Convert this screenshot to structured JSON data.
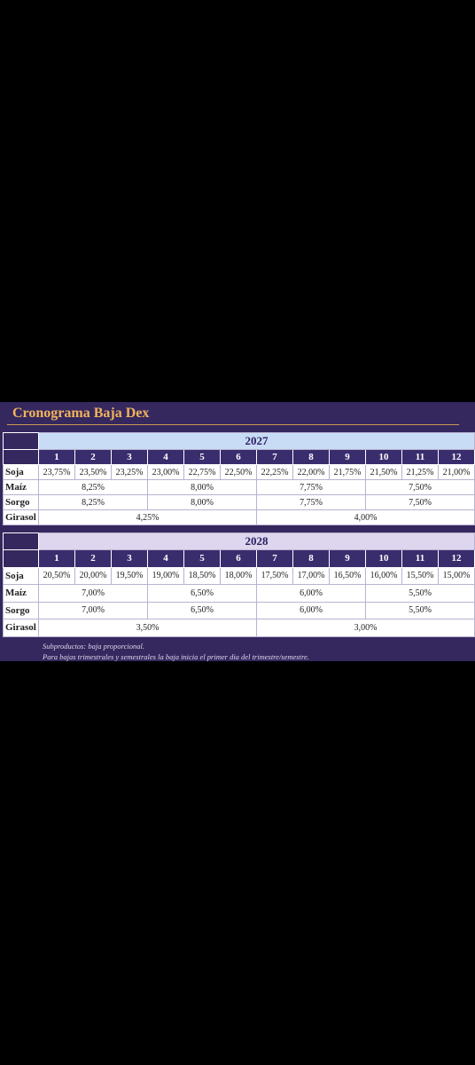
{
  "title": "Cronograma Baja Dex",
  "tables": [
    {
      "year": "2027",
      "months": [
        "1",
        "2",
        "3",
        "4",
        "5",
        "6",
        "7",
        "8",
        "9",
        "10",
        "11",
        "12"
      ],
      "rows": [
        {
          "label": "Soja",
          "cells": [
            "23,75%",
            "23,50%",
            "23,25%",
            "23,00%",
            "22,75%",
            "22,50%",
            "22,25%",
            "22,00%",
            "21,75%",
            "21,50%",
            "21,25%",
            "21,00%"
          ]
        },
        {
          "label": "Maíz",
          "cells": [
            "8,25%",
            "8,00%",
            "7,75%",
            "7,50%"
          ]
        },
        {
          "label": "Sorgo",
          "cells": [
            "8,25%",
            "8,00%",
            "7,75%",
            "7,50%"
          ]
        },
        {
          "label": "Girasol",
          "cells": [
            "4,25%",
            "4,00%"
          ]
        }
      ]
    },
    {
      "year": "2028",
      "months": [
        "1",
        "2",
        "3",
        "4",
        "5",
        "6",
        "7",
        "8",
        "9",
        "10",
        "11",
        "12"
      ],
      "rows": [
        {
          "label": "Soja",
          "cells": [
            "20,50%",
            "20,00%",
            "19,50%",
            "19,00%",
            "18,50%",
            "18,00%",
            "17,50%",
            "17,00%",
            "16,50%",
            "16,00%",
            "15,50%",
            "15,00%"
          ]
        },
        {
          "label": "Maíz",
          "cells": [
            "7,00%",
            "6,50%",
            "6,00%",
            "5,50%"
          ]
        },
        {
          "label": "Sorgo",
          "cells": [
            "7,00%",
            "6,50%",
            "6,00%",
            "5,50%"
          ]
        },
        {
          "label": "Girasol",
          "cells": [
            "3,50%",
            "3,00%"
          ]
        }
      ]
    }
  ],
  "notes": [
    "Subproductos: baja proporcional.",
    "Para bajas trimestrales y semestrales la baja inicia el primer dia del trimestre/semestre."
  ]
}
